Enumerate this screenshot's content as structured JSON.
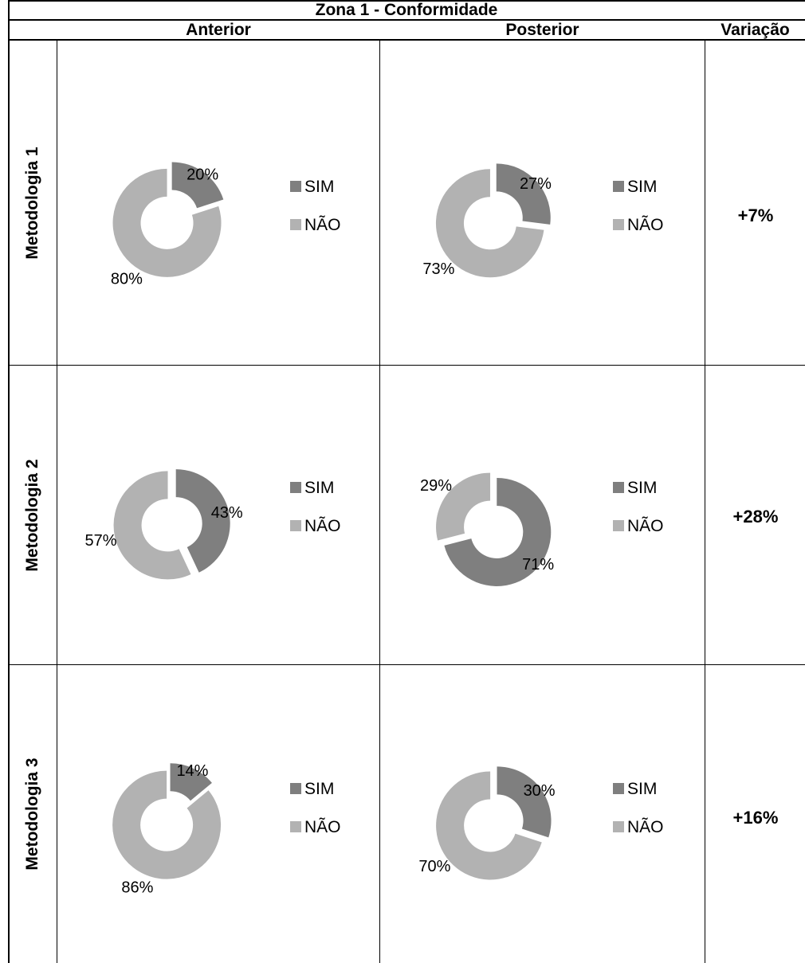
{
  "table": {
    "title": "Zona 1 - Conformidade",
    "columns": {
      "before": "Anterior",
      "after": "Posterior",
      "variation": "Variação"
    },
    "rows": [
      {
        "label": "Metodologia 1",
        "variation": "+7%"
      },
      {
        "label": "Metodologia 2",
        "variation": "+28%"
      },
      {
        "label": "Metodologia 3",
        "variation": "+16%"
      }
    ]
  },
  "colors": {
    "SIM": "#7f7f7f",
    "NAO": "#b2b2b2",
    "grid": "#000000"
  },
  "chart_data": [
    {
      "type": "pie",
      "donut": true,
      "row": "Metodologia 1",
      "column": "Anterior",
      "legend": [
        "SIM",
        "NÃO"
      ],
      "values": [
        20,
        80
      ],
      "data_labels": [
        "20%",
        "80%"
      ]
    },
    {
      "type": "pie",
      "donut": true,
      "row": "Metodologia 1",
      "column": "Posterior",
      "legend": [
        "SIM",
        "NÃO"
      ],
      "values": [
        27,
        73
      ],
      "data_labels": [
        "27%",
        "73%"
      ]
    },
    {
      "type": "pie",
      "donut": true,
      "row": "Metodologia 2",
      "column": "Anterior",
      "legend": [
        "SIM",
        "NÃO"
      ],
      "values": [
        43,
        57
      ],
      "data_labels": [
        "43%",
        "57%"
      ]
    },
    {
      "type": "pie",
      "donut": true,
      "row": "Metodologia 2",
      "column": "Posterior",
      "legend": [
        "SIM",
        "NÃO"
      ],
      "values": [
        71,
        29
      ],
      "data_labels": [
        "71%",
        "29%"
      ]
    },
    {
      "type": "pie",
      "donut": true,
      "row": "Metodologia 3",
      "column": "Anterior",
      "legend": [
        "SIM",
        "NÃO"
      ],
      "values": [
        14,
        86
      ],
      "data_labels": [
        "14%",
        "86%"
      ]
    },
    {
      "type": "pie",
      "donut": true,
      "row": "Metodologia 3",
      "column": "Posterior",
      "legend": [
        "SIM",
        "NÃO"
      ],
      "values": [
        30,
        70
      ],
      "data_labels": [
        "30%",
        "70%"
      ]
    }
  ]
}
